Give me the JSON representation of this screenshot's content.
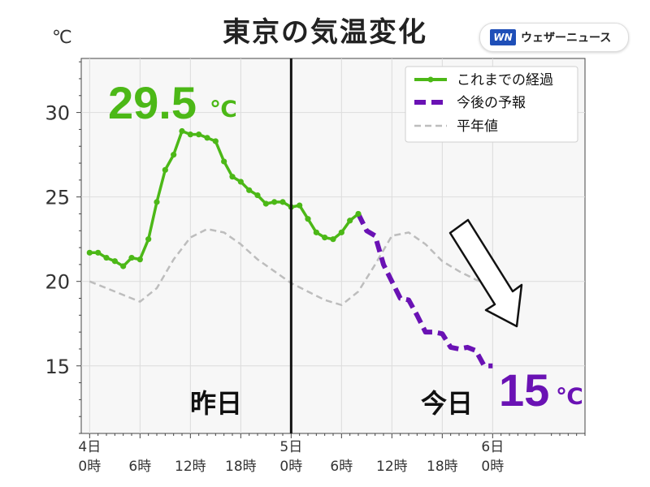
{
  "title": "東京の気温変化",
  "unit_label": "℃",
  "logo": {
    "mark": "WN",
    "text": "ウェザーニュース"
  },
  "annotations": {
    "max_temp": "29.5",
    "max_unit": "℃",
    "forecast_temp": "15",
    "forecast_unit": "℃",
    "yesterday": "昨日",
    "today": "今日"
  },
  "colors": {
    "observed": "#4cb817",
    "forecast": "#6a12b4",
    "normal": "#bdbdbd"
  },
  "chart_data": {
    "type": "line",
    "title": "東京の気温変化",
    "ylabel": "℃",
    "xlim": [
      -1,
      59
    ],
    "ylim": [
      11,
      33.2
    ],
    "y_ticks": [
      15,
      20,
      25,
      30
    ],
    "x_ticks": [
      {
        "x": 0,
        "top": "4日",
        "bottom": "0時"
      },
      {
        "x": 6,
        "top": "",
        "bottom": "6時"
      },
      {
        "x": 12,
        "top": "",
        "bottom": "12時"
      },
      {
        "x": 18,
        "top": "",
        "bottom": "18時"
      },
      {
        "x": 24,
        "top": "5日",
        "bottom": "0時"
      },
      {
        "x": 30,
        "top": "",
        "bottom": "6時"
      },
      {
        "x": 36,
        "top": "",
        "bottom": "12時"
      },
      {
        "x": 42,
        "top": "",
        "bottom": "18時"
      },
      {
        "x": 48,
        "top": "6日",
        "bottom": "0時"
      }
    ],
    "divider_x": 24,
    "legend": "top-right",
    "grid": true,
    "series": [
      {
        "name": "これまでの経過",
        "style": "solid-markers",
        "x": [
          0,
          1,
          2,
          3,
          4,
          5,
          6,
          7,
          8,
          9,
          10,
          11,
          12,
          13,
          14,
          15,
          16,
          17,
          18,
          19,
          20,
          21,
          22,
          23,
          24,
          25,
          26,
          27,
          28,
          29,
          30,
          31,
          32
        ],
        "y": [
          21.7,
          21.7,
          21.4,
          21.2,
          20.9,
          21.4,
          21.3,
          22.5,
          24.7,
          26.6,
          27.5,
          28.9,
          28.7,
          28.7,
          28.5,
          28.3,
          27.1,
          26.2,
          25.9,
          25.4,
          25.1,
          24.6,
          24.7,
          24.7,
          24.4,
          24.5,
          23.7,
          22.9,
          22.6,
          22.5,
          22.9,
          23.6,
          24.0
        ]
      },
      {
        "name": "今後の予報",
        "style": "dashed-thick",
        "x": [
          32,
          33,
          34,
          35,
          36,
          37,
          38,
          39,
          40,
          41,
          42,
          43,
          44,
          45,
          46,
          47,
          48
        ],
        "y": [
          24.0,
          23.0,
          22.7,
          21.0,
          20.0,
          19.0,
          18.9,
          18.0,
          17.0,
          17.0,
          16.9,
          16.1,
          16.0,
          16.1,
          15.9,
          15.0,
          15.0
        ]
      },
      {
        "name": "平年値",
        "style": "dashed-thin",
        "x": [
          0,
          2,
          4,
          6,
          8,
          10,
          12,
          14,
          16,
          18,
          20,
          22,
          24,
          26,
          28,
          30,
          32,
          34,
          36,
          38,
          40,
          42,
          44,
          46,
          48
        ],
        "y": [
          20.0,
          19.6,
          19.2,
          18.8,
          19.6,
          21.3,
          22.6,
          23.1,
          22.9,
          22.2,
          21.3,
          20.6,
          19.9,
          19.4,
          18.9,
          18.6,
          19.4,
          21.0,
          22.7,
          22.9,
          22.2,
          21.2,
          20.6,
          20.1,
          19.7
        ]
      }
    ]
  }
}
